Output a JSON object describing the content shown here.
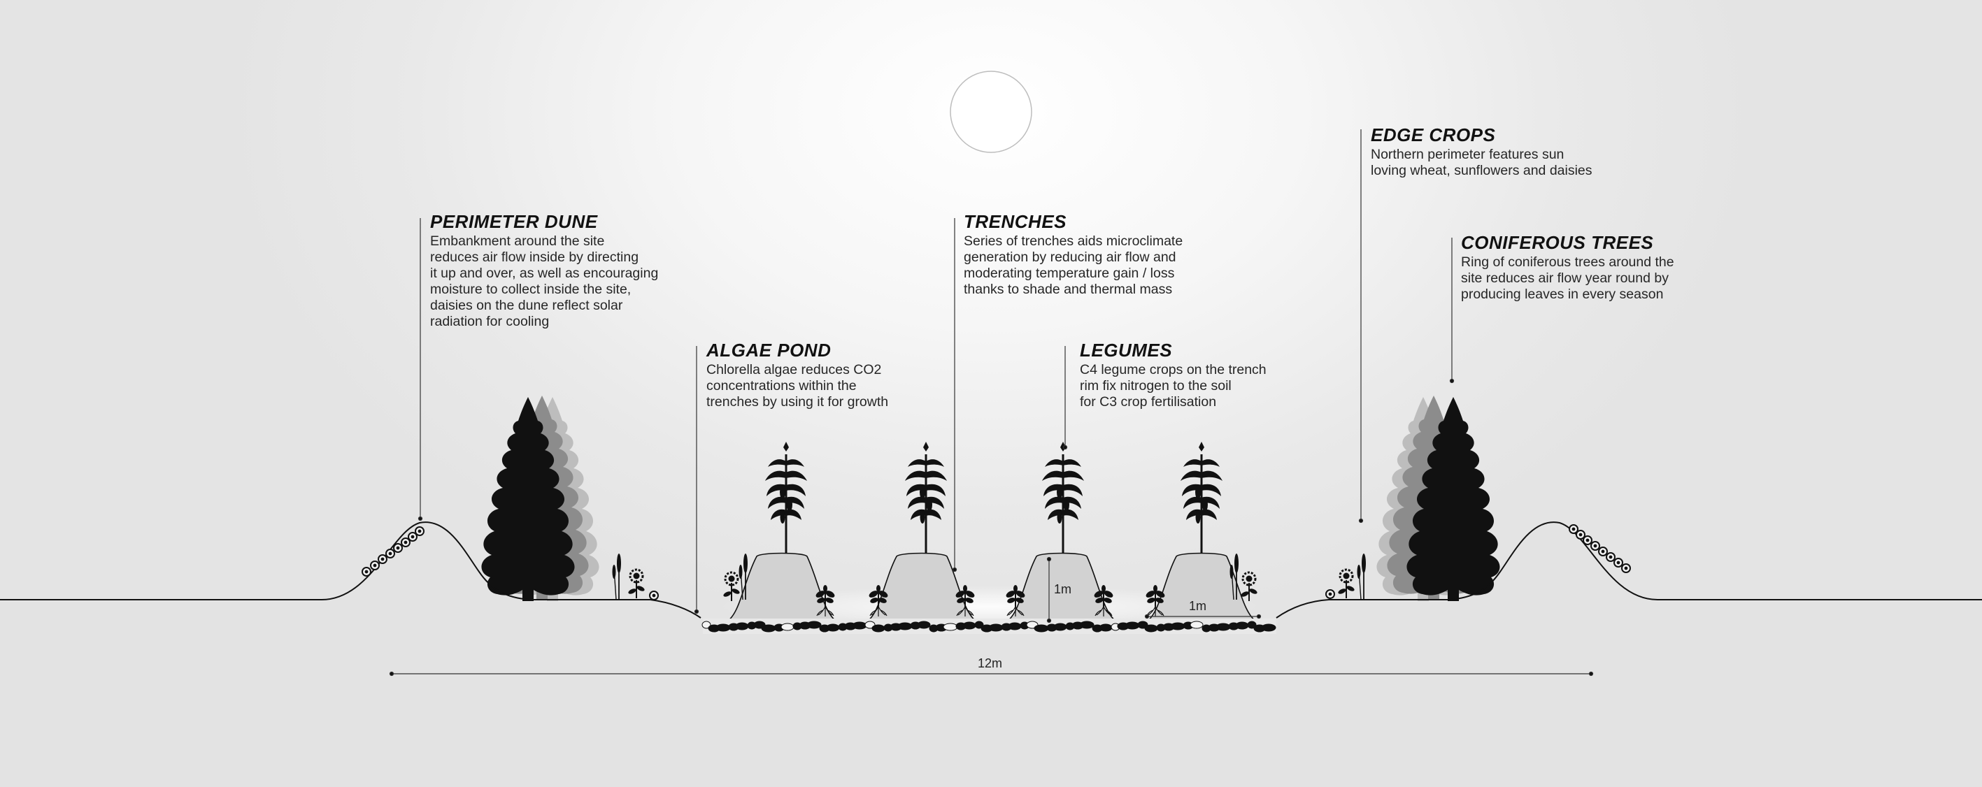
{
  "labels": {
    "perimeter_dune": {
      "title": "PERIMETER DUNE",
      "text": "Embankment around the site\nreduces air flow inside by directing\nit up and over, as well as encouraging\nmoisture to collect inside the site,\ndaisies on the dune reflect solar\nradiation for cooling"
    },
    "algae_pond": {
      "title": "ALGAE POND",
      "text": "Chlorella algae reduces CO2\nconcentrations within the\ntrenches by using it for growth"
    },
    "trenches": {
      "title": "TRENCHES",
      "text": "Series of trenches aids microclimate\ngeneration by reducing air flow and\nmoderating temperature gain / loss\nthanks to shade and thermal mass"
    },
    "legumes": {
      "title": "LEGUMES",
      "text": "C4 legume crops on the trench\nrim fix nitrogen to the soil\nfor C3 crop fertilisation"
    },
    "edge_crops": {
      "title": "EDGE CROPS",
      "text": "Northern perimeter features sun\nloving wheat, sunflowers and daisies"
    },
    "coniferous_trees": {
      "title": "CONIFEROUS TREES",
      "text": "Ring of coniferous trees around the\nsite reduces air flow year round by\nproducing leaves in every season"
    }
  },
  "dimensions": {
    "height": "1m",
    "width": "1m",
    "total": "12m"
  },
  "colors": {
    "ink": "#111111",
    "mound": "#d4d4d4",
    "tree_mid": "#8c8c8c",
    "tree_light": "#bdbdbd"
  }
}
